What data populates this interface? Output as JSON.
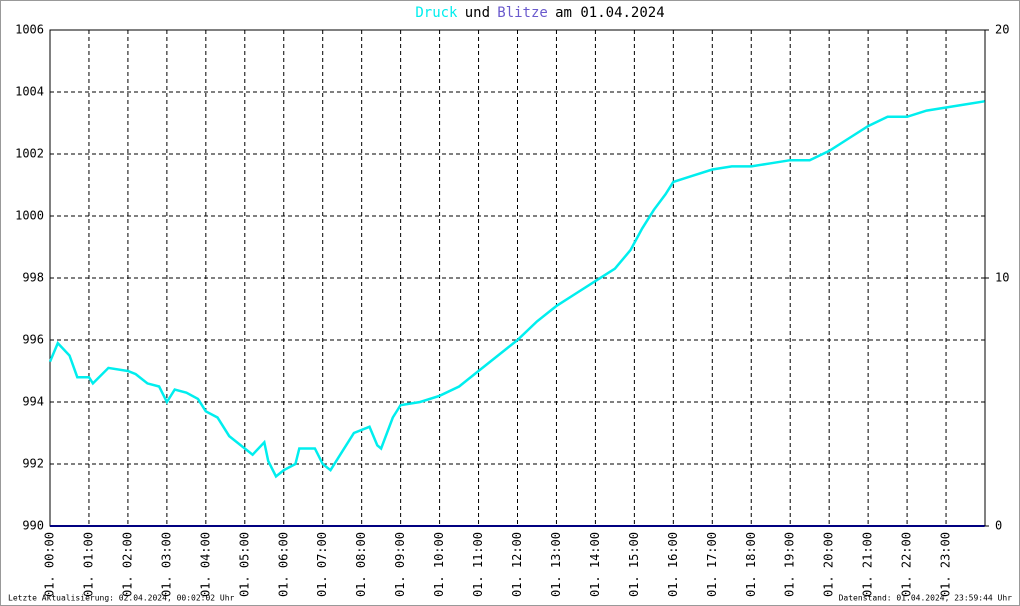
{
  "chart_data": {
    "type": "line",
    "title_joiner": "und",
    "title_date": "am 01.04.2024",
    "series": [
      {
        "name": "Druck",
        "color": "#00eeee",
        "x": [
          0,
          0.2,
          0.5,
          0.7,
          1.0,
          1.1,
          1.5,
          2.0,
          2.2,
          2.5,
          2.8,
          3.0,
          3.2,
          3.5,
          3.8,
          4.0,
          4.3,
          4.6,
          5.0,
          5.2,
          5.5,
          5.6,
          5.8,
          6.0,
          6.3,
          6.4,
          6.8,
          7.0,
          7.2,
          7.5,
          7.8,
          8.2,
          8.4,
          8.5,
          8.8,
          9.0,
          9.5,
          10.0,
          10.5,
          11.0,
          11.5,
          12.0,
          12.5,
          13.0,
          13.5,
          14.0,
          14.5,
          14.9,
          15.2,
          15.5,
          15.8,
          16.0,
          16.5,
          17.0,
          17.5,
          18.0,
          18.5,
          19.0,
          19.5,
          20.0,
          20.5,
          21.0,
          21.5,
          22.0,
          22.5,
          23.0,
          23.5,
          23.99
        ],
        "values": [
          995.3,
          995.9,
          995.5,
          994.8,
          994.8,
          994.6,
          995.1,
          995.0,
          994.9,
          994.6,
          994.5,
          994.0,
          994.4,
          994.3,
          994.1,
          993.7,
          993.5,
          992.9,
          992.5,
          992.3,
          992.7,
          992.1,
          991.6,
          991.8,
          992.0,
          992.5,
          992.5,
          992.0,
          991.8,
          992.4,
          993.0,
          993.2,
          992.6,
          992.5,
          993.5,
          993.9,
          994.0,
          994.2,
          994.5,
          995.0,
          995.5,
          996.0,
          996.6,
          997.1,
          997.5,
          997.9,
          998.3,
          998.9,
          999.6,
          1000.2,
          1000.7,
          1001.1,
          1001.3,
          1001.5,
          1001.6,
          1001.6,
          1001.7,
          1001.8,
          1001.8,
          1002.1,
          1002.5,
          1002.9,
          1003.2,
          1003.2,
          1003.4,
          1003.5,
          1003.6,
          1003.7
        ]
      },
      {
        "name": "Blitze",
        "color": "#000080",
        "axis": "y2",
        "x": [
          0,
          23.99
        ],
        "values": [
          0,
          0
        ]
      }
    ],
    "xlim": [
      0,
      24
    ],
    "xticks": [
      {
        "value": 0,
        "label": "01. 00:00"
      },
      {
        "value": 1,
        "label": "01. 01:00"
      },
      {
        "value": 2,
        "label": "01. 02:00"
      },
      {
        "value": 3,
        "label": "01. 03:00"
      },
      {
        "value": 4,
        "label": "01. 04:00"
      },
      {
        "value": 5,
        "label": "01. 05:00"
      },
      {
        "value": 6,
        "label": "01. 06:00"
      },
      {
        "value": 7,
        "label": "01. 07:00"
      },
      {
        "value": 8,
        "label": "01. 08:00"
      },
      {
        "value": 9,
        "label": "01. 09:00"
      },
      {
        "value": 10,
        "label": "01. 10:00"
      },
      {
        "value": 11,
        "label": "01. 11:00"
      },
      {
        "value": 12,
        "label": "01. 12:00"
      },
      {
        "value": 13,
        "label": "01. 13:00"
      },
      {
        "value": 14,
        "label": "01. 14:00"
      },
      {
        "value": 15,
        "label": "01. 15:00"
      },
      {
        "value": 16,
        "label": "01. 16:00"
      },
      {
        "value": 17,
        "label": "01. 17:00"
      },
      {
        "value": 18,
        "label": "01. 18:00"
      },
      {
        "value": 19,
        "label": "01. 19:00"
      },
      {
        "value": 20,
        "label": "01. 20:00"
      },
      {
        "value": 21,
        "label": "01. 21:00"
      },
      {
        "value": 22,
        "label": "01. 22:00"
      },
      {
        "value": 23,
        "label": "01. 23:00"
      }
    ],
    "ylim": [
      990,
      1006
    ],
    "yticks": [
      990,
      992,
      994,
      996,
      998,
      1000,
      1002,
      1004,
      1006
    ],
    "y2lim": [
      0,
      20
    ],
    "y2ticks": [
      0,
      10,
      20
    ],
    "grid": true,
    "footer_left": "Letzte Aktualisierung: 02.04.2024, 00:02:02 Uhr",
    "footer_right": "Datenstand: 01.04.2024, 23:59:44 Uhr"
  }
}
